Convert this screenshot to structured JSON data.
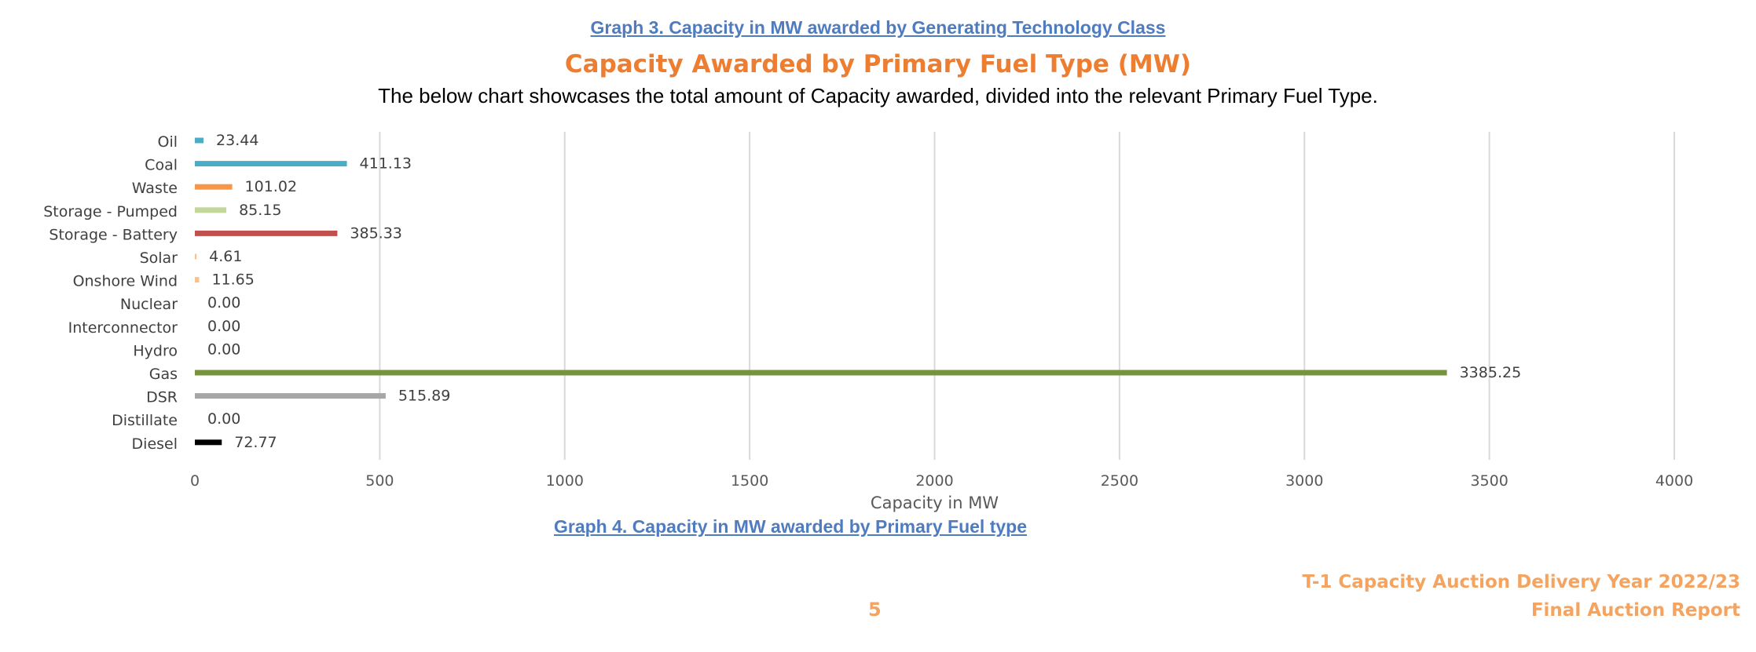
{
  "caption_top": "Graph 3. Capacity in MW awarded by Generating Technology Class",
  "caption_bottom": "Graph 4. Capacity in MW awarded by Primary Fuel type",
  "footer": {
    "line1": "T-1 Capacity Auction Delivery Year 2022/23",
    "line2": "Final Auction Report",
    "page_number": "5"
  },
  "chart_data": {
    "type": "bar",
    "orientation": "horizontal",
    "title": "Capacity Awarded by Primary Fuel Type (MW)",
    "subtitle": "The below chart showcases the total amount of Capacity awarded, divided into the relevant Primary Fuel Type.",
    "xlabel": "Capacity in MW",
    "ylabel": "",
    "xlim": [
      0,
      4000
    ],
    "xticks": [
      0,
      500,
      1000,
      1500,
      2000,
      2500,
      3000,
      3500,
      4000
    ],
    "grid": "vertical",
    "legend": "none",
    "categories": [
      "Oil",
      "Coal",
      "Waste",
      "Storage - Pumped",
      "Storage - Battery",
      "Solar",
      "Onshore Wind",
      "Nuclear",
      "Interconnector",
      "Hydro",
      "Gas",
      "DSR",
      "Distillate",
      "Diesel"
    ],
    "values": [
      23.44,
      411.13,
      101.02,
      85.15,
      385.33,
      4.61,
      11.65,
      0.0,
      0.0,
      0.0,
      3385.25,
      515.89,
      0.0,
      72.77
    ],
    "value_labels": [
      "23.44",
      "411.13",
      "101.02",
      "85.15",
      "385.33",
      "4.61",
      "11.65",
      "0.00",
      "0.00",
      "0.00",
      "3385.25",
      "515.89",
      "0.00",
      "72.77"
    ],
    "colors": [
      "#4bacc6",
      "#4bacc6",
      "#f79646",
      "#c3d69b",
      "#c0504d",
      "#fac090",
      "#fac090",
      "#f79646",
      "#4bacc6",
      "#4f81bd",
      "#77933c",
      "#a6a6a6",
      "#4f81bd",
      "#000000"
    ]
  }
}
